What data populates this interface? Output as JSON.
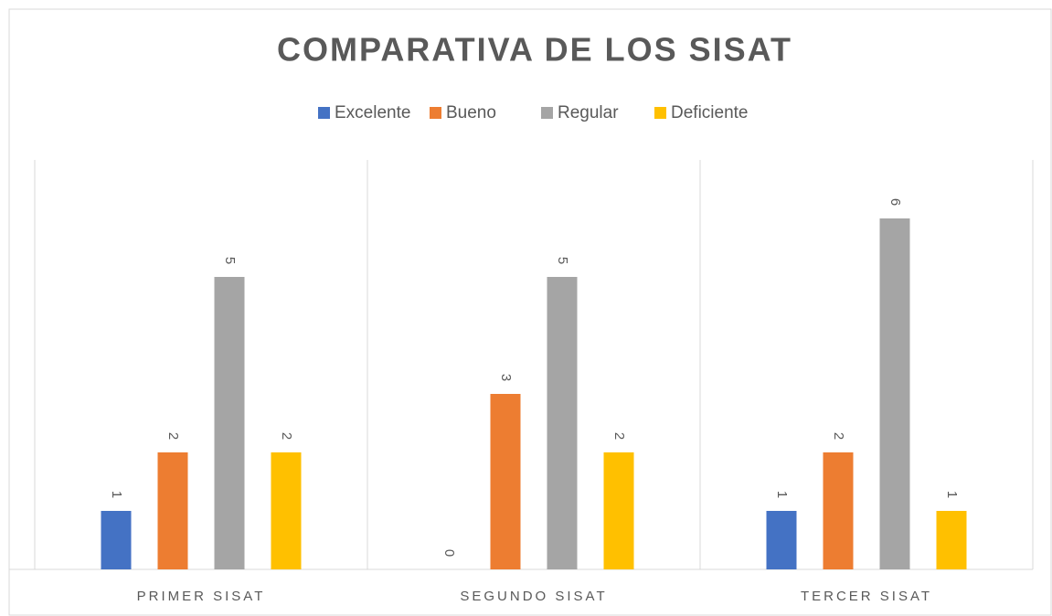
{
  "chart_data": {
    "type": "bar",
    "title": "COMPARATIVA DE LOS SISAT",
    "categories": [
      "PRIMER SISAT",
      "SEGUNDO SISAT",
      "TERCER SISAT"
    ],
    "series": [
      {
        "name": "Excelente",
        "color": "#4472c4",
        "values": [
          1,
          0,
          1
        ]
      },
      {
        "name": "Bueno",
        "color": "#ed7d31",
        "values": [
          2,
          3,
          2
        ]
      },
      {
        "name": "Regular",
        "color": "#a5a5a5",
        "values": [
          5,
          5,
          6
        ]
      },
      {
        "name": "Deficiente",
        "color": "#ffc000",
        "values": [
          2,
          2,
          1
        ]
      }
    ],
    "ylim": [
      0,
      7
    ],
    "legend": "top"
  }
}
